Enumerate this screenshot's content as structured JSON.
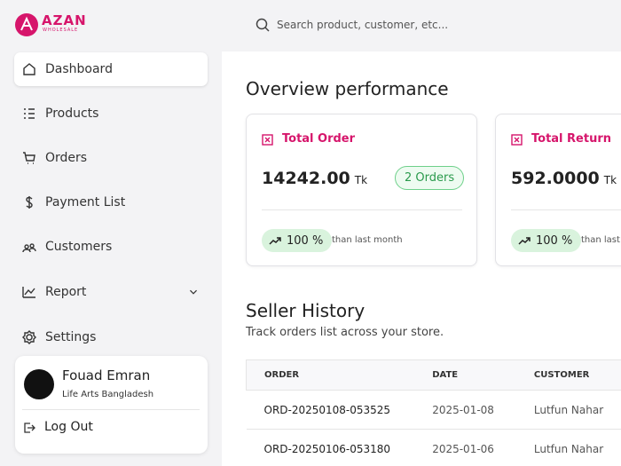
{
  "brand": {
    "name": "AZAN",
    "tagline": "WHOLESALE"
  },
  "search": {
    "placeholder": "Search product, customer, etc..."
  },
  "nav": [
    "Dashboard",
    "Products",
    "Orders",
    "Payment List",
    "Customers",
    "Report",
    "Settings"
  ],
  "user": {
    "name": "Fouad Emran",
    "org": "Life Arts Bangladesh",
    "logout": "Log Out"
  },
  "overview": {
    "title": "Overview performance",
    "cards": [
      {
        "title": "Total Order",
        "value": "14242.00",
        "unit": "Tk",
        "badge": "2 Orders",
        "change": "100 %",
        "note": "than last month"
      },
      {
        "title": "Total Return",
        "value": "592.0000",
        "unit": "Tk",
        "change": "100 %",
        "note": "than last month"
      }
    ]
  },
  "seller_history": {
    "title": "Seller History",
    "subtitle": "Track orders list across your store.",
    "table": {
      "columns": [
        "ORDER",
        "DATE",
        "CUSTOMER"
      ],
      "rows": [
        [
          "ORD-20250108-053525",
          "2025-01-08",
          "Lutfun Nahar"
        ],
        [
          "ORD-20250106-053180",
          "2025-01-06",
          "Lutfun Nahar"
        ]
      ]
    }
  }
}
